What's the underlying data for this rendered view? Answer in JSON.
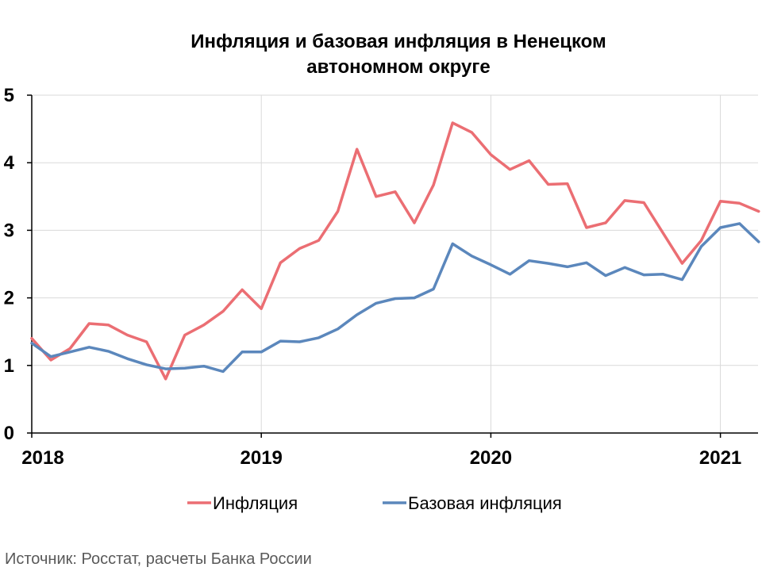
{
  "chart_data": {
    "type": "line",
    "title_lines": [
      "Инфляция и базовая инфляция в Ненецком",
      "автономном округе"
    ],
    "ylim": [
      0,
      5
    ],
    "yticks": [
      "0",
      "1",
      "2",
      "3",
      "4",
      "5"
    ],
    "xticks": [
      "2018",
      "2019",
      "2020",
      "2021"
    ],
    "x": [
      "2018-01",
      "2018-02",
      "2018-03",
      "2018-04",
      "2018-05",
      "2018-06",
      "2018-07",
      "2018-08",
      "2018-09",
      "2018-10",
      "2018-11",
      "2018-12",
      "2019-01",
      "2019-02",
      "2019-03",
      "2019-04",
      "2019-05",
      "2019-06",
      "2019-07",
      "2019-08",
      "2019-09",
      "2019-10",
      "2019-11",
      "2019-12",
      "2020-01",
      "2020-02",
      "2020-03",
      "2020-04",
      "2020-05",
      "2020-06",
      "2020-07",
      "2020-08",
      "2020-09",
      "2020-10",
      "2020-11",
      "2020-12",
      "2021-01",
      "2021-02",
      "2021-03"
    ],
    "grid": true,
    "legend_position": "bottom",
    "series": [
      {
        "name": "Инфляция",
        "color": "#EB6E73",
        "values": [
          1.4,
          1.08,
          1.25,
          1.62,
          1.6,
          1.45,
          1.35,
          0.8,
          1.45,
          1.6,
          1.8,
          2.12,
          1.84,
          2.52,
          2.73,
          2.85,
          3.28,
          4.2,
          3.5,
          3.57,
          3.11,
          3.67,
          4.59,
          4.45,
          4.12,
          3.9,
          4.03,
          3.68,
          3.69,
          3.04,
          3.11,
          3.44,
          3.41,
          2.96,
          2.51,
          2.85,
          3.43,
          3.4,
          3.28
        ]
      },
      {
        "name": "Базовая инфляция",
        "color": "#5B87BC",
        "values": [
          1.33,
          1.13,
          1.2,
          1.27,
          1.21,
          1.1,
          1.01,
          0.95,
          0.96,
          0.99,
          0.91,
          1.2,
          1.2,
          1.36,
          1.35,
          1.41,
          1.54,
          1.75,
          1.92,
          1.99,
          2.0,
          2.13,
          2.8,
          2.62,
          2.49,
          2.35,
          2.55,
          2.51,
          2.46,
          2.52,
          2.33,
          2.45,
          2.34,
          2.35,
          2.27,
          2.76,
          3.04,
          3.1,
          2.83
        ]
      }
    ]
  },
  "source_note": "Источник: Росстат, расчеты Банка России"
}
